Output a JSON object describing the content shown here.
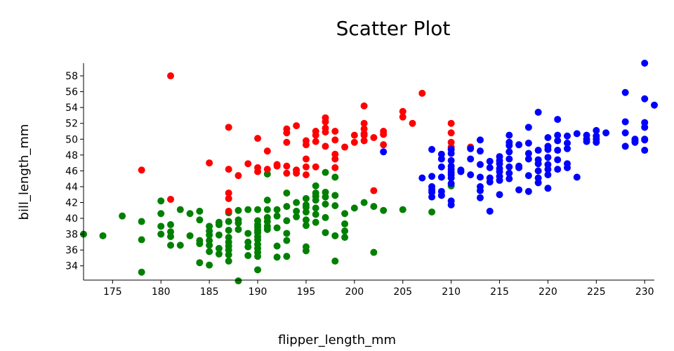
{
  "chart_data": {
    "type": "scatter",
    "title": "Scatter Plot",
    "xlabel": "flipper_length_mm",
    "ylabel": "bill_length_mm",
    "xlim": [
      172,
      231
    ],
    "ylim": [
      32.2,
      59.6
    ],
    "x_ticks": [
      175,
      180,
      185,
      190,
      195,
      200,
      205,
      210,
      215,
      220,
      225,
      230
    ],
    "y_ticks": [
      34,
      36,
      38,
      40,
      42,
      44,
      46,
      48,
      50,
      52,
      54,
      56,
      58
    ],
    "grid": false,
    "legend": "none",
    "series": [
      {
        "color": "#008000",
        "points": [
          [
            172,
            38
          ],
          [
            174,
            37.8
          ],
          [
            176,
            40.3
          ],
          [
            178,
            39.6
          ],
          [
            178,
            37.3
          ],
          [
            178,
            33.2
          ],
          [
            180,
            42.2
          ],
          [
            180,
            40.6
          ],
          [
            180,
            39
          ],
          [
            180,
            38
          ],
          [
            181,
            39.2
          ],
          [
            181,
            38.3
          ],
          [
            181,
            37.7
          ],
          [
            181,
            36.6
          ],
          [
            182,
            41.1
          ],
          [
            182,
            36.6
          ],
          [
            183,
            40.6
          ],
          [
            183,
            37.8
          ],
          [
            184,
            40.9
          ],
          [
            184,
            39.8
          ],
          [
            184,
            37.2
          ],
          [
            184,
            36.8
          ],
          [
            184,
            34.4
          ],
          [
            185,
            39
          ],
          [
            185,
            38.4
          ],
          [
            185,
            37.9
          ],
          [
            185,
            37.2
          ],
          [
            185,
            36.6
          ],
          [
            185,
            35.8
          ],
          [
            185,
            34.1
          ],
          [
            186,
            39.5
          ],
          [
            186,
            39.2
          ],
          [
            186,
            37.9
          ],
          [
            186,
            36.2
          ],
          [
            186,
            35.5
          ],
          [
            187,
            40.7
          ],
          [
            187,
            39.6
          ],
          [
            187,
            38.5
          ],
          [
            187,
            37.6
          ],
          [
            187,
            37
          ],
          [
            187,
            36.5
          ],
          [
            187,
            36
          ],
          [
            187,
            35.4
          ],
          [
            187,
            34.6
          ],
          [
            188,
            41
          ],
          [
            188,
            39.8
          ],
          [
            188,
            39.4
          ],
          [
            188,
            38.6
          ],
          [
            188,
            32.1
          ],
          [
            189,
            41.1
          ],
          [
            189,
            38.1
          ],
          [
            189,
            37
          ],
          [
            189,
            36.4
          ],
          [
            189,
            35.3
          ],
          [
            190,
            41.1
          ],
          [
            190,
            39.7
          ],
          [
            190,
            39.2
          ],
          [
            190,
            38.9
          ],
          [
            190,
            38.5
          ],
          [
            190,
            38.2
          ],
          [
            190,
            37.7
          ],
          [
            190,
            37.3
          ],
          [
            190,
            36.7
          ],
          [
            190,
            36.2
          ],
          [
            190,
            35.7
          ],
          [
            190,
            35.2
          ],
          [
            190,
            33.5
          ],
          [
            191,
            42.3
          ],
          [
            191,
            41.1
          ],
          [
            191,
            40.1
          ],
          [
            191,
            39.6
          ],
          [
            191,
            39
          ],
          [
            191,
            38.6
          ],
          [
            191,
            45.6
          ],
          [
            192,
            41.1
          ],
          [
            192,
            40.3
          ],
          [
            192,
            38.8
          ],
          [
            192,
            36.5
          ],
          [
            192,
            35.1
          ],
          [
            193,
            43.2
          ],
          [
            193,
            41.5
          ],
          [
            193,
            39.7
          ],
          [
            193,
            38.1
          ],
          [
            193,
            37.2
          ],
          [
            193,
            35.2
          ],
          [
            194,
            42
          ],
          [
            194,
            40.9
          ],
          [
            194,
            40.2
          ],
          [
            194,
            46.1
          ],
          [
            195,
            42.5
          ],
          [
            195,
            41.7
          ],
          [
            195,
            41.4
          ],
          [
            195,
            40.8
          ],
          [
            195,
            39.8
          ],
          [
            195,
            39.1
          ],
          [
            195,
            36.4
          ],
          [
            195,
            35.9
          ],
          [
            196,
            44.1
          ],
          [
            196,
            43.2
          ],
          [
            196,
            42.8
          ],
          [
            196,
            42.3
          ],
          [
            196,
            41.3
          ],
          [
            196,
            40.5
          ],
          [
            196,
            39.5
          ],
          [
            197,
            45.8
          ],
          [
            197,
            43.3
          ],
          [
            197,
            42.7
          ],
          [
            197,
            41.8
          ],
          [
            197,
            40.1
          ],
          [
            197,
            38.2
          ],
          [
            198,
            45.2
          ],
          [
            198,
            42.9
          ],
          [
            198,
            41.6
          ],
          [
            198,
            37.8
          ],
          [
            198,
            34.6
          ],
          [
            199,
            40.6
          ],
          [
            199,
            39.3
          ],
          [
            199,
            38.4
          ],
          [
            199,
            37.6
          ],
          [
            200,
            41.3
          ],
          [
            201,
            42
          ],
          [
            202,
            41.5
          ],
          [
            202,
            35.7
          ],
          [
            203,
            41
          ],
          [
            205,
            41.1
          ],
          [
            208,
            40.8
          ],
          [
            210,
            44.1
          ]
        ]
      },
      {
        "color": "#ff0000",
        "points": [
          [
            178,
            46.1
          ],
          [
            181,
            58
          ],
          [
            181,
            42.4
          ],
          [
            185,
            47
          ],
          [
            187,
            51.5
          ],
          [
            187,
            46.2
          ],
          [
            187,
            43.2
          ],
          [
            187,
            42.5
          ],
          [
            187,
            40.9
          ],
          [
            188,
            45.4
          ],
          [
            189,
            46.9
          ],
          [
            190,
            50.1
          ],
          [
            190,
            46.4
          ],
          [
            190,
            45.9
          ],
          [
            191,
            48.5
          ],
          [
            191,
            46.2
          ],
          [
            192,
            46.8
          ],
          [
            192,
            46.6
          ],
          [
            193,
            51.3
          ],
          [
            193,
            50.8
          ],
          [
            193,
            49.6
          ],
          [
            193,
            46.6
          ],
          [
            193,
            45.7
          ],
          [
            194,
            51.7
          ],
          [
            194,
            46.1
          ],
          [
            194,
            45.7
          ],
          [
            195,
            49.8
          ],
          [
            195,
            49.3
          ],
          [
            195,
            47.5
          ],
          [
            195,
            46.5
          ],
          [
            195,
            45.5
          ],
          [
            196,
            51
          ],
          [
            196,
            50.5
          ],
          [
            196,
            49.7
          ],
          [
            196,
            46.5
          ],
          [
            197,
            52.7
          ],
          [
            197,
            52.2
          ],
          [
            197,
            51.4
          ],
          [
            197,
            50.9
          ],
          [
            197,
            49.1
          ],
          [
            198,
            51
          ],
          [
            198,
            49.9
          ],
          [
            198,
            48.1
          ],
          [
            198,
            47.5
          ],
          [
            198,
            46.4
          ],
          [
            199,
            49
          ],
          [
            200,
            50.5
          ],
          [
            200,
            49.6
          ],
          [
            201,
            54.2
          ],
          [
            201,
            52
          ],
          [
            201,
            51.3
          ],
          [
            201,
            50.7
          ],
          [
            201,
            50.5
          ],
          [
            201,
            49.8
          ],
          [
            202,
            50.2
          ],
          [
            202,
            43.5
          ],
          [
            203,
            51
          ],
          [
            203,
            50.6
          ],
          [
            203,
            49.3
          ],
          [
            205,
            53.5
          ],
          [
            205,
            52.8
          ],
          [
            206,
            52
          ],
          [
            207,
            55.8
          ],
          [
            210,
            52
          ],
          [
            210,
            50.8
          ],
          [
            210,
            49.6
          ],
          [
            210,
            49
          ],
          [
            212,
            49
          ]
        ]
      },
      {
        "color": "#0000ff",
        "points": [
          [
            203,
            48.4
          ],
          [
            207,
            45.1
          ],
          [
            208,
            48.7
          ],
          [
            208,
            44
          ],
          [
            208,
            43.6
          ],
          [
            208,
            43.3
          ],
          [
            208,
            42.7
          ],
          [
            208,
            45.3
          ],
          [
            209,
            48.1
          ],
          [
            209,
            47.5
          ],
          [
            209,
            46.5
          ],
          [
            209,
            45.2
          ],
          [
            209,
            43.4
          ],
          [
            209,
            42.9
          ],
          [
            210,
            48.7
          ],
          [
            210,
            48.2
          ],
          [
            210,
            47.3
          ],
          [
            210,
            46.6
          ],
          [
            210,
            46.2
          ],
          [
            210,
            45.8
          ],
          [
            210,
            45.5
          ],
          [
            210,
            45.1
          ],
          [
            210,
            44.4
          ],
          [
            210,
            42.2
          ],
          [
            210,
            41.7
          ],
          [
            211,
            45.9
          ],
          [
            211,
            46.1
          ],
          [
            212,
            48.8
          ],
          [
            212,
            47.5
          ],
          [
            212,
            45.5
          ],
          [
            213,
            49.9
          ],
          [
            213,
            48.5
          ],
          [
            213,
            46.8
          ],
          [
            213,
            45.2
          ],
          [
            213,
            44
          ],
          [
            213,
            43.5
          ],
          [
            213,
            42.6
          ],
          [
            214,
            47.2
          ],
          [
            214,
            46.4
          ],
          [
            214,
            45.1
          ],
          [
            214,
            44.6
          ],
          [
            214,
            40.9
          ],
          [
            215,
            47.8
          ],
          [
            215,
            47.3
          ],
          [
            215,
            46.9
          ],
          [
            215,
            46.3
          ],
          [
            215,
            45.9
          ],
          [
            215,
            45.3
          ],
          [
            215,
            44.8
          ],
          [
            215,
            43
          ],
          [
            216,
            50.5
          ],
          [
            216,
            49.6
          ],
          [
            216,
            49.2
          ],
          [
            216,
            48.4
          ],
          [
            216,
            47.5
          ],
          [
            216,
            46.5
          ],
          [
            216,
            45.7
          ],
          [
            216,
            45
          ],
          [
            217,
            49.3
          ],
          [
            217,
            46.6
          ],
          [
            217,
            46.4
          ],
          [
            217,
            43.6
          ],
          [
            218,
            51.5
          ],
          [
            218,
            49.5
          ],
          [
            218,
            48.2
          ],
          [
            218,
            47.5
          ],
          [
            218,
            45.4
          ],
          [
            218,
            43.4
          ],
          [
            219,
            53.4
          ],
          [
            219,
            48.6
          ],
          [
            219,
            47.4
          ],
          [
            219,
            46.9
          ],
          [
            219,
            46
          ],
          [
            219,
            45.1
          ],
          [
            219,
            44.5
          ],
          [
            220,
            50.2
          ],
          [
            220,
            49.1
          ],
          [
            220,
            48.7
          ],
          [
            220,
            47.7
          ],
          [
            220,
            46.8
          ],
          [
            220,
            46.2
          ],
          [
            220,
            45.5
          ],
          [
            220,
            43.8
          ],
          [
            221,
            52.5
          ],
          [
            221,
            50.5
          ],
          [
            221,
            49.8
          ],
          [
            221,
            48.6
          ],
          [
            221,
            47.4
          ],
          [
            221,
            46.2
          ],
          [
            222,
            50.4
          ],
          [
            222,
            49.5
          ],
          [
            222,
            48.8
          ],
          [
            222,
            46.9
          ],
          [
            222,
            46.4
          ],
          [
            223,
            50.7
          ],
          [
            223,
            45.2
          ],
          [
            224,
            50.5
          ],
          [
            224,
            50
          ],
          [
            224,
            49.7
          ],
          [
            225,
            51.1
          ],
          [
            225,
            50.4
          ],
          [
            225,
            50
          ],
          [
            225,
            49.6
          ],
          [
            226,
            50.8
          ],
          [
            228,
            55.9
          ],
          [
            228,
            52.2
          ],
          [
            228,
            50.8
          ],
          [
            228,
            49.1
          ],
          [
            229,
            50
          ],
          [
            229,
            49.6
          ],
          [
            229,
            49.8
          ],
          [
            230,
            59.6
          ],
          [
            230,
            55.1
          ],
          [
            230,
            52.1
          ],
          [
            230,
            51.5
          ],
          [
            230,
            50
          ],
          [
            230,
            49.9
          ],
          [
            230,
            48.6
          ],
          [
            231,
            54.3
          ]
        ]
      }
    ]
  }
}
